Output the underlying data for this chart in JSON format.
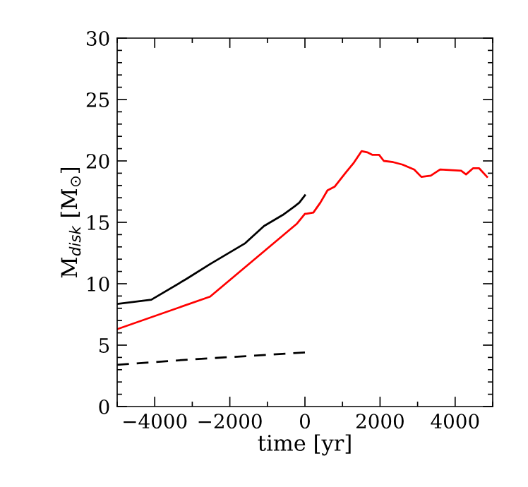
{
  "chart_data": {
    "type": "line",
    "xlabel": "time [yr]",
    "ylabel": "M$_{disk}$ [M$_{⊙}$]",
    "xlim": [
      -5000,
      5000
    ],
    "ylim": [
      0,
      30
    ],
    "xticks": [
      {
        "value": -5000,
        "label": null
      },
      -4000,
      {
        "value": -3000,
        "label": null
      },
      -2000,
      {
        "value": -1000,
        "label": null
      },
      0,
      {
        "value": 1000,
        "label": null
      },
      2000,
      {
        "value": 3000,
        "label": null
      },
      4000,
      {
        "value": 5000,
        "label": null
      }
    ],
    "yticks": [
      0,
      {
        "value": 1,
        "label": null
      },
      {
        "value": 2,
        "label": null
      },
      {
        "value": 3,
        "label": null
      },
      {
        "value": 4,
        "label": null
      },
      5,
      {
        "value": 6,
        "label": null
      },
      {
        "value": 7,
        "label": null
      },
      {
        "value": 8,
        "label": null
      },
      {
        "value": 9,
        "label": null
      },
      10,
      {
        "value": 11,
        "label": null
      },
      {
        "value": 12,
        "label": null
      },
      {
        "value": 13,
        "label": null
      },
      {
        "value": 14,
        "label": null
      },
      15,
      {
        "value": 16,
        "label": null
      },
      {
        "value": 17,
        "label": null
      },
      {
        "value": 18,
        "label": null
      },
      {
        "value": 19,
        "label": null
      },
      20,
      {
        "value": 21,
        "label": null
      },
      {
        "value": 22,
        "label": null
      },
      {
        "value": 23,
        "label": null
      },
      {
        "value": 24,
        "label": null
      },
      25,
      {
        "value": 26,
        "label": null
      },
      {
        "value": 27,
        "label": null
      },
      {
        "value": 28,
        "label": null
      },
      {
        "value": 29,
        "label": null
      },
      30
    ],
    "grid": false,
    "legend": false,
    "marker": "none",
    "series": [
      {
        "color": "#000000",
        "line_style": "solid",
        "x": [
          -5000,
          -4090,
          -3150,
          -2525,
          -1590,
          -1090,
          -590,
          -275,
          -150,
          0
        ],
        "values": [
          8.35,
          8.7,
          10.4,
          11.6,
          13.3,
          14.7,
          15.6,
          16.3,
          16.6,
          17.2
        ]
      },
      {
        "color": "#ff0000",
        "line_style": "solid",
        "x": [
          -5000,
          -2525,
          -210,
          0,
          40,
          225,
          410,
          600,
          790,
          1100,
          1290,
          1510,
          1660,
          1790,
          1975,
          2100,
          2350,
          2600,
          2910,
          3100,
          3350,
          3600,
          4160,
          4290,
          4475,
          4640,
          4850
        ],
        "values": [
          6.3,
          8.95,
          14.9,
          15.7,
          15.7,
          15.8,
          16.6,
          17.6,
          17.9,
          19.1,
          19.8,
          20.8,
          20.7,
          20.5,
          20.5,
          20.0,
          19.9,
          19.7,
          19.3,
          18.7,
          18.8,
          19.3,
          19.2,
          18.9,
          19.4,
          19.4,
          18.7
        ]
      },
      {
        "color": "#000000",
        "line_style": "dashed",
        "x": [
          -5000,
          -3200,
          0
        ],
        "values": [
          3.4,
          3.8,
          4.4
        ]
      }
    ]
  }
}
